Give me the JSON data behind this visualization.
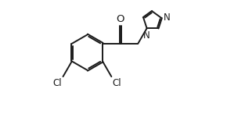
{
  "bg_color": "#ffffff",
  "line_color": "#1a1a1a",
  "line_width": 1.4,
  "font_size": 8.5,
  "bx": 0.27,
  "by": 0.54,
  "br": 0.155,
  "imz_r": 0.082,
  "cl1_label": "Cl",
  "cl2_label": "Cl",
  "o_label": "O",
  "n1_label": "N",
  "n3_label": "N"
}
